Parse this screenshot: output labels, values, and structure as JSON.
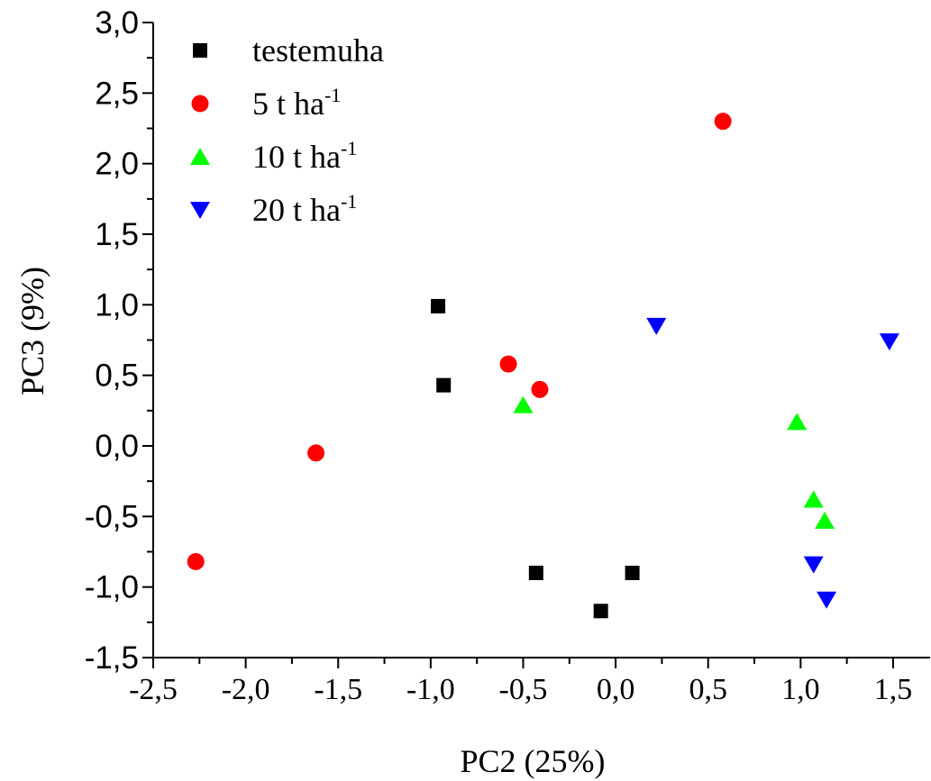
{
  "chart_data": {
    "type": "scatter",
    "title": "",
    "xlabel": "PC2 (25%)",
    "ylabel": "PC3 (9%)",
    "xlim": [
      -2.5,
      1.7
    ],
    "ylim": [
      -1.5,
      3.0
    ],
    "xticks": [
      -2.5,
      -2.0,
      -1.5,
      -1.0,
      -0.5,
      0.0,
      0.5,
      1.0,
      1.5
    ],
    "xtick_labels": [
      "-2,5",
      "-2,0",
      "-1,5",
      "-1,0",
      "-0,5",
      "0,0",
      "0,5",
      "1,0",
      "1,5"
    ],
    "yticks": [
      -1.5,
      -1.0,
      -0.5,
      0.0,
      0.5,
      1.0,
      1.5,
      2.0,
      2.5,
      3.0
    ],
    "ytick_labels": [
      "-1,5",
      "-1,0",
      "-0,5",
      "0,0",
      "0,5",
      "1,0",
      "1,5",
      "2,0",
      "2,5",
      "3,0"
    ],
    "grid": false,
    "legend_position": "top-left",
    "series": [
      {
        "name": "testemuha",
        "marker": "square",
        "color": "#000000",
        "points": [
          [
            -0.96,
            0.99
          ],
          [
            -0.93,
            0.43
          ],
          [
            -0.43,
            -0.9
          ],
          [
            0.09,
            -0.9
          ],
          [
            -0.08,
            -1.17
          ]
        ]
      },
      {
        "name": "5 t ha-1",
        "name_base": "5 t ha",
        "name_sup": "-1",
        "marker": "circle",
        "color": "#ff0000",
        "points": [
          [
            0.58,
            2.3
          ],
          [
            -0.58,
            0.58
          ],
          [
            -0.41,
            0.4
          ],
          [
            -1.62,
            -0.05
          ],
          [
            -2.27,
            -0.82
          ]
        ]
      },
      {
        "name": "10 t ha-1",
        "name_base": "10 t ha",
        "name_sup": "-1",
        "marker": "triangle-up",
        "color": "#00ff00",
        "points": [
          [
            -0.5,
            0.29
          ],
          [
            0.98,
            0.17
          ],
          [
            1.07,
            -0.38
          ],
          [
            1.13,
            -0.53
          ]
        ]
      },
      {
        "name": "20 t ha-1",
        "name_base": "20 t ha",
        "name_sup": "-1",
        "marker": "triangle-down",
        "color": "#0000ff",
        "points": [
          [
            0.22,
            0.85
          ],
          [
            1.48,
            0.74
          ],
          [
            1.07,
            -0.84
          ],
          [
            1.14,
            -1.09
          ]
        ]
      }
    ]
  }
}
